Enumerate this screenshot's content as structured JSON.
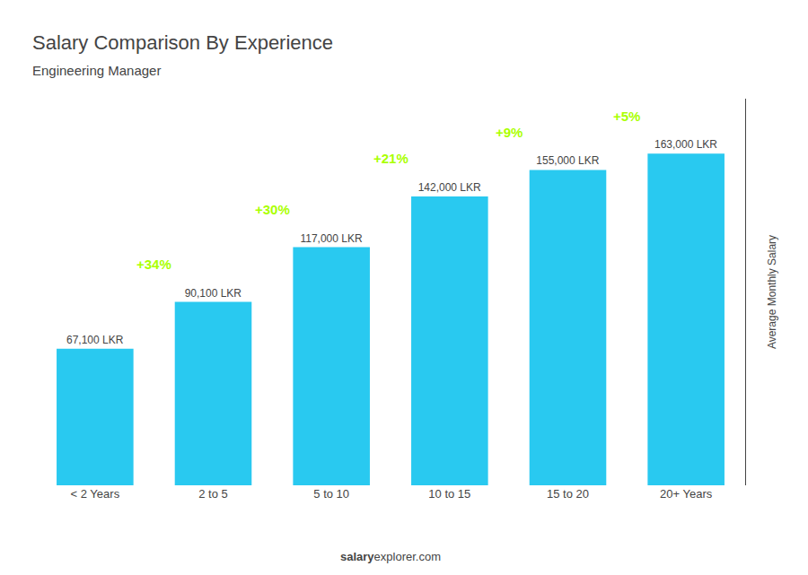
{
  "chart_data": {
    "type": "bar",
    "title": "Salary Comparison By Experience",
    "subtitle": "Engineering Manager",
    "categories": [
      "< 2 Years",
      "2 to 5",
      "5 to 10",
      "10 to 15",
      "15 to 20",
      "20+ Years"
    ],
    "values": [
      67100,
      90100,
      117000,
      142000,
      155000,
      163000
    ],
    "value_labels": [
      "67,100 LKR",
      "90,100 LKR",
      "117,000 LKR",
      "142,000 LKR",
      "155,000 LKR",
      "163,000 LKR"
    ],
    "data_labels": true,
    "color": "#29c9f0",
    "ylabel": "Average Monthly Salary",
    "ylim": [
      0,
      190000
    ],
    "tick_labels": "x",
    "grid": false,
    "annotations": [
      {
        "text": "+34%",
        "between": [
          "< 2 Years",
          "2 to 5"
        ],
        "color": "#aaff00"
      },
      {
        "text": "+30%",
        "between": [
          "2 to 5",
          "5 to 10"
        ],
        "color": "#aaff00"
      },
      {
        "text": "+21%",
        "between": [
          "5 to 10",
          "10 to 15"
        ],
        "color": "#aaff00"
      },
      {
        "text": "+9%",
        "between": [
          "10 to 15",
          "15 to 20"
        ],
        "color": "#aaff00"
      },
      {
        "text": "+5%",
        "between": [
          "15 to 20",
          "20+ Years"
        ],
        "color": "#aaff00"
      }
    ],
    "footer": [
      "salary",
      "explorer.com"
    ]
  }
}
